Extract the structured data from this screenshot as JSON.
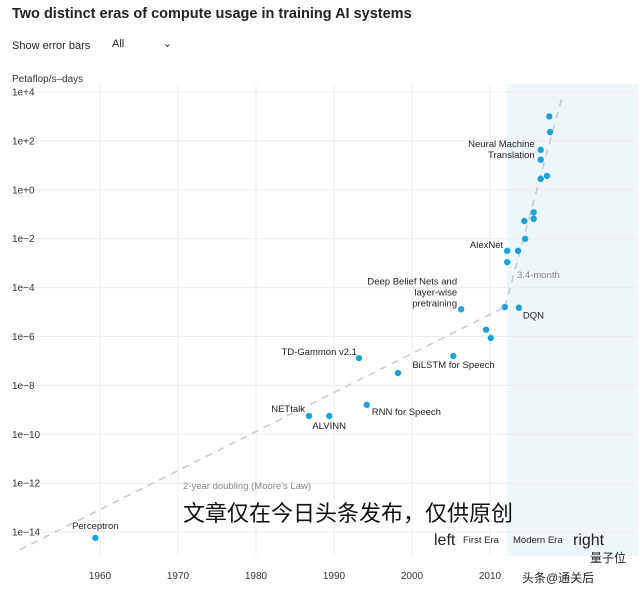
{
  "header": {
    "title": "Two distinct eras of compute usage in training AI systems",
    "error_bars_label": "Show error bars",
    "error_bars_value": "All",
    "chevron_icon": "chevron-down-icon"
  },
  "chart_data": {
    "type": "scatter",
    "title": "Two distinct eras of compute usage in training AI systems",
    "ylabel": "Petaflop/s–days",
    "xlabel": "",
    "y_scale": "log",
    "xlim": [
      1949,
      2022
    ],
    "ylim": [
      1e-15,
      10000.0
    ],
    "grid": true,
    "point_color": "#1aa3d9",
    "modern_era_shade_color": "#eef6fa",
    "x_ticks": [
      "1960",
      "1970",
      "1980",
      "1990",
      "2000",
      "2010"
    ],
    "y_ticks": [
      "1e+4",
      "1e+2",
      "1e+0",
      "1e−2",
      "1e−4",
      "1e−6",
      "1e−8",
      "1e−10",
      "1e−12",
      "1e−14"
    ],
    "points": [
      {
        "x": 1959.4,
        "y": 5.8e-15
      },
      {
        "x": 1986.8,
        "y": 5.6e-10
      },
      {
        "x": 1989.4,
        "y": 5.6e-10
      },
      {
        "x": 1994.2,
        "y": 1.6e-09
      },
      {
        "x": 1998.2,
        "y": 3.2e-08
      },
      {
        "x": 1993.2,
        "y": 1.3e-07
      },
      {
        "x": 2005.3,
        "y": 1.6e-07
      },
      {
        "x": 2006.3,
        "y": 1.3e-05
      },
      {
        "x": 2009.5,
        "y": 1.9e-06
      },
      {
        "x": 2010.1,
        "y": 8.7e-07
      },
      {
        "x": 2011.9,
        "y": 1.6e-05
      },
      {
        "x": 2013.7,
        "y": 1.5e-05
      },
      {
        "x": 2012.2,
        "y": 0.0011
      },
      {
        "x": 2012.2,
        "y": 0.0032
      },
      {
        "x": 2013.6,
        "y": 0.0032
      },
      {
        "x": 2014.5,
        "y": 0.0098
      },
      {
        "x": 2014.4,
        "y": 0.053
      },
      {
        "x": 2015.6,
        "y": 0.065
      },
      {
        "x": 2015.6,
        "y": 0.12
      },
      {
        "x": 2016.5,
        "y": 2.8
      },
      {
        "x": 2017.3,
        "y": 3.7
      },
      {
        "x": 2016.5,
        "y": 17
      },
      {
        "x": 2016.5,
        "y": 43
      },
      {
        "x": 2017.7,
        "y": 230
      },
      {
        "x": 2017.6,
        "y": 1000
      }
    ],
    "annotations": [
      {
        "point": 0,
        "lines": [
          "Perceptron"
        ]
      },
      {
        "point": 1,
        "lines": [
          "NETtalk"
        ]
      },
      {
        "point": 2,
        "lines": [
          "ALVINN"
        ]
      },
      {
        "point": 3,
        "lines": [
          "RNN for Speech"
        ]
      },
      {
        "point": 6,
        "lines": [
          "BiLSTM for Speech"
        ]
      },
      {
        "point": 5,
        "lines": [
          "TD-Gammon v2.1"
        ]
      },
      {
        "point": 7,
        "lines": [
          "Deep Belief Nets and",
          "layer-wise",
          "pretraining"
        ]
      },
      {
        "point": 11,
        "lines": [
          "DQN"
        ]
      },
      {
        "point": 13,
        "lines": [
          "AlexNet"
        ]
      },
      {
        "point": 22,
        "lines": [
          "Neural Machine",
          "Translation"
        ]
      }
    ],
    "trends": [
      {
        "label": "2-year doubling (Moore's Law)",
        "from": [
          1949.7,
          1.9e-15
        ],
        "to": [
          2011.9,
          1.6e-05
        ]
      },
      {
        "label": "3.4-month",
        "from": [
          2011.9,
          1.6e-05
        ],
        "to": [
          2019.2,
          5600
        ]
      }
    ],
    "era_start": 2012.2
  },
  "overlay": {
    "watermark_text": "文章仅在今日头条发布，仅供原创",
    "left": "left",
    "first_era": "First Era",
    "modern_era": "Modern Era",
    "right": "right",
    "source_mark": "头条@通关后",
    "faint_mark": "量子位"
  }
}
